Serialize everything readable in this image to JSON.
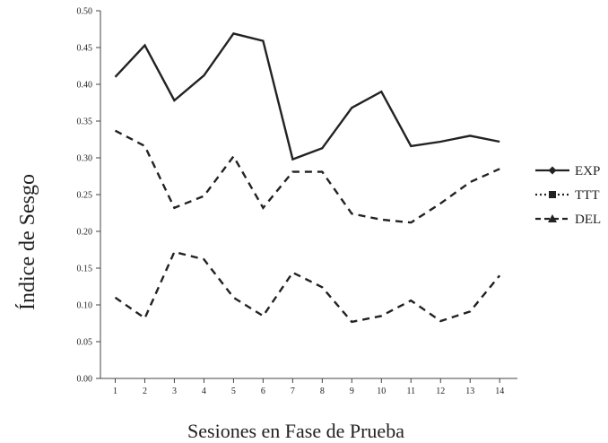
{
  "chart_data": {
    "type": "line",
    "title": "",
    "xlabel": "Sesiones en Fase de Prueba",
    "ylabel": "Índice de Sesgo",
    "x": [
      1,
      2,
      3,
      4,
      5,
      6,
      7,
      8,
      9,
      10,
      11,
      12,
      13,
      14
    ],
    "x_tick_labels": [
      "1",
      "2",
      "3",
      "4",
      "5",
      "6",
      "7",
      "8",
      "9",
      "10",
      "11",
      "12",
      "13",
      "14"
    ],
    "ylim": [
      0,
      0.5
    ],
    "y_ticks": [
      0,
      0.05,
      0.1,
      0.15,
      0.2,
      0.25,
      0.3,
      0.35,
      0.4,
      0.45,
      0.5
    ],
    "y_tick_labels": [
      "0.00",
      "0.05",
      "0.10",
      "0.15",
      "0.20",
      "0.25",
      "0.30",
      "0.35",
      "0.40",
      "0.45",
      "0.50"
    ],
    "grid": false,
    "legend_position": "right",
    "series": [
      {
        "name": "EXP",
        "style": "solid",
        "marker": "diamond",
        "color": "#222222",
        "values": [
          0.41,
          0.453,
          0.378,
          0.412,
          0.469,
          0.459,
          0.298,
          0.313,
          0.368,
          0.39,
          0.316,
          0.322,
          0.33,
          0.322
        ]
      },
      {
        "name": "TTT",
        "style": "dotted",
        "marker": "square",
        "color": "#222222",
        "values": [
          0.337,
          0.316,
          0.232,
          0.248,
          0.302,
          0.232,
          0.281,
          0.281,
          0.224,
          0.216,
          0.212,
          0.238,
          0.267,
          0.285
        ]
      },
      {
        "name": "DEL",
        "style": "dashed",
        "marker": "triangle",
        "color": "#222222",
        "values": [
          0.11,
          0.082,
          0.172,
          0.162,
          0.11,
          0.085,
          0.144,
          0.124,
          0.077,
          0.085,
          0.106,
          0.078,
          0.091,
          0.14
        ]
      }
    ]
  }
}
